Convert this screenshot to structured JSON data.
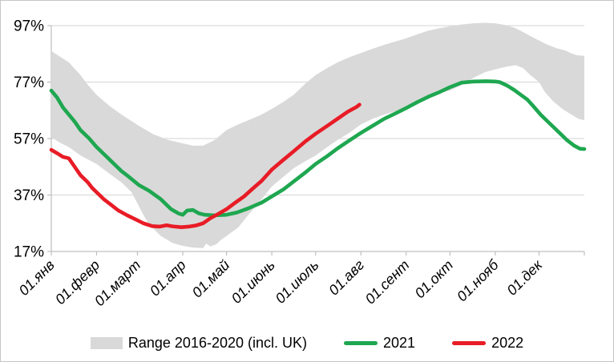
{
  "figure": {
    "background": "#ffffff",
    "border_color": "#c6c6c6"
  },
  "axes": {
    "y_tick_labels": [
      "17%",
      "37%",
      "57%",
      "77%",
      "97%"
    ],
    "y_tick_values": [
      17,
      37,
      57,
      77,
      97
    ],
    "x_tick_labels": [
      "01.янв",
      "01.февр",
      "01.март",
      "01.апр",
      "01.май",
      "01.июнь",
      "01.июль",
      "01.авг",
      "01.сент",
      "01.окт",
      "01.нояб",
      "01.дек"
    ],
    "x_tick_days": [
      0,
      31,
      59,
      90,
      120,
      151,
      181,
      212,
      243,
      273,
      304,
      334
    ],
    "grid_color": "#dcdcdc",
    "axis_color": "#bfbfbf",
    "label_color": "#000000"
  },
  "legend": [
    {
      "type": "area",
      "label": "Range 2016-2020 (incl. UK)",
      "color": "#d9d9d9"
    },
    {
      "type": "line",
      "label": "2021",
      "color": "#1ea750"
    },
    {
      "type": "line",
      "label": "2022",
      "color": "#e81c26"
    }
  ],
  "chart_data": {
    "type": "line",
    "title": "",
    "xlabel": "",
    "ylabel": "",
    "x_unit": "day_of_year (0 = 01 Jan)",
    "ylim": [
      17,
      97
    ],
    "xlim": [
      0,
      365
    ],
    "grid": "horizontal",
    "legend_position": "bottom",
    "band_color": "#d9d9d9",
    "series": [
      {
        "name": "Range 2016-2020 (incl. UK) upper",
        "role": "band-upper",
        "color": "#d9d9d9",
        "points": [
          [
            0,
            88
          ],
          [
            6,
            86
          ],
          [
            12,
            84
          ],
          [
            20,
            79.5
          ],
          [
            25,
            76
          ],
          [
            31,
            72.5
          ],
          [
            40,
            68.5
          ],
          [
            48,
            65.5
          ],
          [
            60,
            61.5
          ],
          [
            70,
            58.5
          ],
          [
            80,
            56.5
          ],
          [
            90,
            55.3
          ],
          [
            97,
            54.5
          ],
          [
            104,
            54.5
          ],
          [
            112,
            56.5
          ],
          [
            120,
            60
          ],
          [
            128,
            62
          ],
          [
            135,
            63.5
          ],
          [
            144,
            65.5
          ],
          [
            151,
            67.5
          ],
          [
            159,
            70
          ],
          [
            166,
            72.5
          ],
          [
            174,
            76.5
          ],
          [
            181,
            79.5
          ],
          [
            189,
            82
          ],
          [
            196,
            84
          ],
          [
            204,
            85.8
          ],
          [
            212,
            87.3
          ],
          [
            220,
            88.8
          ],
          [
            228,
            90.2
          ],
          [
            235,
            91.3
          ],
          [
            243,
            92.5
          ],
          [
            251,
            94
          ],
          [
            258,
            95.2
          ],
          [
            265,
            96
          ],
          [
            273,
            96.8
          ],
          [
            281,
            97.4
          ],
          [
            289,
            97.8
          ],
          [
            297,
            98
          ],
          [
            304,
            97.8
          ],
          [
            310,
            97.3
          ],
          [
            317,
            96.3
          ],
          [
            322,
            95
          ],
          [
            328,
            93.3
          ],
          [
            334,
            91.7
          ],
          [
            340,
            90.2
          ],
          [
            346,
            89
          ],
          [
            352,
            88.2
          ],
          [
            356,
            87.2
          ],
          [
            360,
            86.5
          ],
          [
            365,
            86.3
          ]
        ]
      },
      {
        "name": "Range 2016-2020 (incl. UK) lower",
        "role": "band-lower",
        "color": "#d9d9d9",
        "points": [
          [
            0,
            57.5
          ],
          [
            6,
            55.5
          ],
          [
            12,
            54
          ],
          [
            20,
            51
          ],
          [
            31,
            48
          ],
          [
            40,
            44.5
          ],
          [
            48,
            41.5
          ],
          [
            55,
            38
          ],
          [
            60,
            33
          ],
          [
            63,
            30
          ],
          [
            67,
            26.5
          ],
          [
            75,
            22.5
          ],
          [
            83,
            20
          ],
          [
            90,
            19
          ],
          [
            97,
            18.4
          ],
          [
            104,
            18.2
          ],
          [
            106,
            19.8
          ],
          [
            109,
            18.8
          ],
          [
            113,
            19.6
          ],
          [
            116,
            21
          ],
          [
            120,
            22.5
          ],
          [
            128,
            25.5
          ],
          [
            135,
            30
          ],
          [
            144,
            35.5
          ],
          [
            151,
            40
          ],
          [
            159,
            43.5
          ],
          [
            166,
            46.5
          ],
          [
            174,
            49
          ],
          [
            181,
            51
          ],
          [
            189,
            54
          ],
          [
            196,
            56.5
          ],
          [
            204,
            59
          ],
          [
            212,
            62
          ],
          [
            220,
            64
          ],
          [
            228,
            65.5
          ],
          [
            235,
            66.5
          ],
          [
            243,
            68
          ],
          [
            251,
            70.3
          ],
          [
            258,
            71.8
          ],
          [
            265,
            73
          ],
          [
            273,
            74
          ],
          [
            281,
            76
          ],
          [
            289,
            78.5
          ],
          [
            297,
            80.5
          ],
          [
            304,
            81.5
          ],
          [
            312,
            82.5
          ],
          [
            318,
            83
          ],
          [
            323,
            82
          ],
          [
            328,
            79.5
          ],
          [
            334,
            77
          ],
          [
            338,
            73.5
          ],
          [
            344,
            70
          ],
          [
            350,
            67.5
          ],
          [
            356,
            65.5
          ],
          [
            361,
            64
          ],
          [
            365,
            63.5
          ]
        ]
      },
      {
        "name": "2021",
        "role": "line",
        "color": "#1ea750",
        "points": [
          [
            0,
            74
          ],
          [
            4,
            71.5
          ],
          [
            8,
            68
          ],
          [
            12,
            65.5
          ],
          [
            16,
            63
          ],
          [
            20,
            60
          ],
          [
            26,
            57
          ],
          [
            31,
            54
          ],
          [
            36,
            51.5
          ],
          [
            40,
            49.5
          ],
          [
            44,
            47.5
          ],
          [
            48,
            45.5
          ],
          [
            53,
            43.5
          ],
          [
            60,
            40.5
          ],
          [
            67,
            38.5
          ],
          [
            75,
            35.5
          ],
          [
            82,
            32
          ],
          [
            87,
            30.5
          ],
          [
            90,
            30
          ],
          [
            93,
            31.5
          ],
          [
            97,
            31.7
          ],
          [
            101,
            30.5
          ],
          [
            105,
            30
          ],
          [
            112,
            29.8
          ],
          [
            120,
            30
          ],
          [
            127,
            30.8
          ],
          [
            135,
            32.3
          ],
          [
            144,
            34.3
          ],
          [
            151,
            36.5
          ],
          [
            159,
            39
          ],
          [
            166,
            41.8
          ],
          [
            174,
            45
          ],
          [
            181,
            48
          ],
          [
            189,
            50.8
          ],
          [
            196,
            53.5
          ],
          [
            204,
            56.3
          ],
          [
            212,
            59
          ],
          [
            220,
            61.5
          ],
          [
            228,
            64
          ],
          [
            236,
            66
          ],
          [
            243,
            67.8
          ],
          [
            251,
            70
          ],
          [
            259,
            72
          ],
          [
            266,
            73.5
          ],
          [
            273,
            75.2
          ],
          [
            281,
            76.8
          ],
          [
            289,
            77.2
          ],
          [
            298,
            77.3
          ],
          [
            304,
            77.2
          ],
          [
            307,
            77
          ],
          [
            312,
            75.8
          ],
          [
            317,
            74.2
          ],
          [
            322,
            72.3
          ],
          [
            326,
            70.8
          ],
          [
            330,
            68.5
          ],
          [
            335,
            65.5
          ],
          [
            340,
            63
          ],
          [
            344,
            61
          ],
          [
            349,
            58.5
          ],
          [
            353,
            56.5
          ],
          [
            358,
            54.5
          ],
          [
            362,
            53.4
          ],
          [
            365,
            53.3
          ]
        ]
      },
      {
        "name": "2022",
        "role": "line",
        "color": "#e81c26",
        "points": [
          [
            0,
            53
          ],
          [
            4,
            51.8
          ],
          [
            8,
            50.5
          ],
          [
            12,
            50
          ],
          [
            16,
            47
          ],
          [
            20,
            44
          ],
          [
            25,
            41.5
          ],
          [
            28,
            39.5
          ],
          [
            31,
            38
          ],
          [
            36,
            35.5
          ],
          [
            41,
            33.5
          ],
          [
            46,
            31.5
          ],
          [
            52,
            29.8
          ],
          [
            58,
            28.3
          ],
          [
            63,
            27
          ],
          [
            69,
            26
          ],
          [
            74,
            25.8
          ],
          [
            79,
            26.3
          ],
          [
            83,
            25.9
          ],
          [
            89,
            25.6
          ],
          [
            94,
            25.8
          ],
          [
            99,
            26.2
          ],
          [
            104,
            27
          ],
          [
            109,
            28.8
          ],
          [
            114,
            30.2
          ],
          [
            120,
            32
          ],
          [
            126,
            34.3
          ],
          [
            132,
            36.5
          ],
          [
            138,
            39.3
          ],
          [
            144,
            42
          ],
          [
            151,
            46
          ],
          [
            159,
            49.5
          ],
          [
            166,
            52.5
          ],
          [
            174,
            56
          ],
          [
            181,
            58.7
          ],
          [
            189,
            61.5
          ],
          [
            196,
            64
          ],
          [
            203,
            66.5
          ],
          [
            209,
            68.2
          ],
          [
            211,
            69
          ]
        ]
      }
    ]
  }
}
